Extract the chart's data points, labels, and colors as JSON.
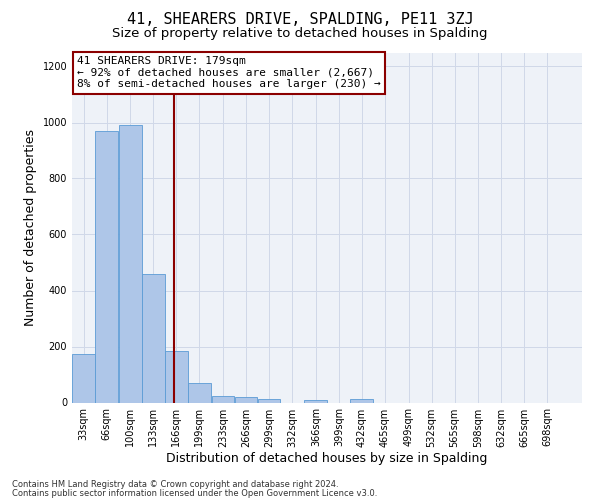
{
  "title1": "41, SHEARERS DRIVE, SPALDING, PE11 3ZJ",
  "title2": "Size of property relative to detached houses in Spalding",
  "xlabel": "Distribution of detached houses by size in Spalding",
  "ylabel": "Number of detached properties",
  "annotation_line1": "41 SHEARERS DRIVE: 179sqm",
  "annotation_line2": "← 92% of detached houses are smaller (2,667)",
  "annotation_line3": "8% of semi-detached houses are larger (230) →",
  "bar_color": "#aec6e8",
  "bar_edge_color": "#5b9bd5",
  "vline_color": "#8b0000",
  "vline_x": 179,
  "bins": [
    33,
    66,
    100,
    133,
    166,
    199,
    233,
    266,
    299,
    332,
    366,
    399,
    432,
    465,
    499,
    532,
    565,
    598,
    632,
    665,
    698,
    731
  ],
  "bin_labels": [
    "33sqm",
    "66sqm",
    "100sqm",
    "133sqm",
    "166sqm",
    "199sqm",
    "233sqm",
    "266sqm",
    "299sqm",
    "332sqm",
    "366sqm",
    "399sqm",
    "432sqm",
    "465sqm",
    "499sqm",
    "532sqm",
    "565sqm",
    "598sqm",
    "632sqm",
    "665sqm",
    "698sqm"
  ],
  "counts": [
    175,
    970,
    990,
    460,
    185,
    70,
    25,
    18,
    12,
    0,
    10,
    0,
    12,
    0,
    0,
    0,
    0,
    0,
    0,
    0,
    0
  ],
  "ylim": [
    0,
    1250
  ],
  "yticks": [
    0,
    200,
    400,
    600,
    800,
    1000,
    1200
  ],
  "grid_color": "#d0d8e8",
  "bg_color": "#eef2f8",
  "footnote1": "Contains HM Land Registry data © Crown copyright and database right 2024.",
  "footnote2": "Contains public sector information licensed under the Open Government Licence v3.0.",
  "title1_fontsize": 11,
  "title2_fontsize": 9.5,
  "xlabel_fontsize": 9,
  "ylabel_fontsize": 9,
  "annot_fontsize": 8,
  "tick_fontsize": 7,
  "footnote_fontsize": 6
}
